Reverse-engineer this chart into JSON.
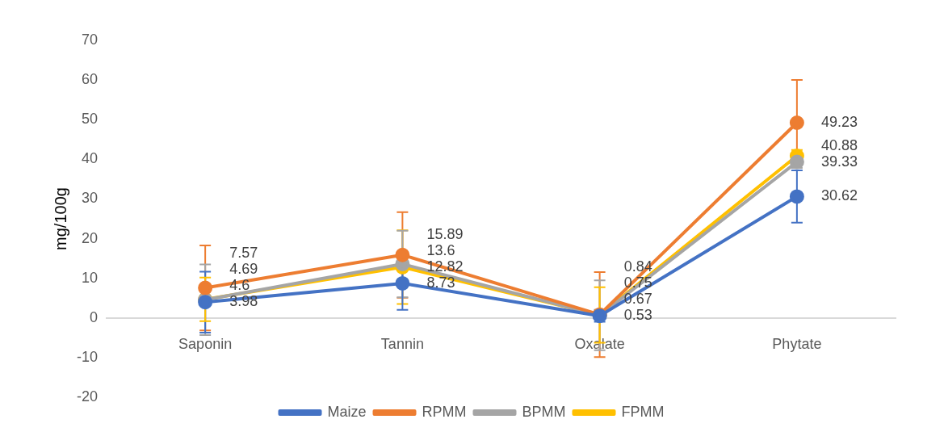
{
  "chart_data": {
    "type": "line",
    "ylabel": "mg/100g",
    "categories": [
      "Saponin",
      "Tannin",
      "Oxalate",
      "Phytate"
    ],
    "ylim": [
      -20,
      70
    ],
    "yticks": [
      -20,
      -10,
      0,
      10,
      20,
      30,
      40,
      50,
      60,
      70
    ],
    "grid": false,
    "legend": "bottom",
    "marker": "circle",
    "data_labels": true,
    "series": [
      {
        "name": "Maize",
        "color": "#4472c4",
        "values": [
          3.98,
          8.73,
          0.53,
          30.62
        ],
        "errors": [
          7.7,
          6.7,
          1.5,
          6.6
        ]
      },
      {
        "name": "RPMM",
        "color": "#ed7d31",
        "values": [
          7.57,
          15.89,
          0.84,
          49.23
        ],
        "errors": [
          10.7,
          10.8,
          10.7,
          10.8
        ]
      },
      {
        "name": "BPMM",
        "color": "#a5a5a5",
        "values": [
          4.6,
          13.6,
          0.67,
          39.33
        ],
        "errors": [
          8.9,
          8.4,
          8.8,
          1.5
        ]
      },
      {
        "name": "FPMM",
        "color": "#ffc000",
        "values": [
          4.69,
          12.82,
          0.75,
          40.88
        ],
        "errors": [
          5.5,
          9.3,
          7,
          1.5
        ]
      }
    ]
  }
}
